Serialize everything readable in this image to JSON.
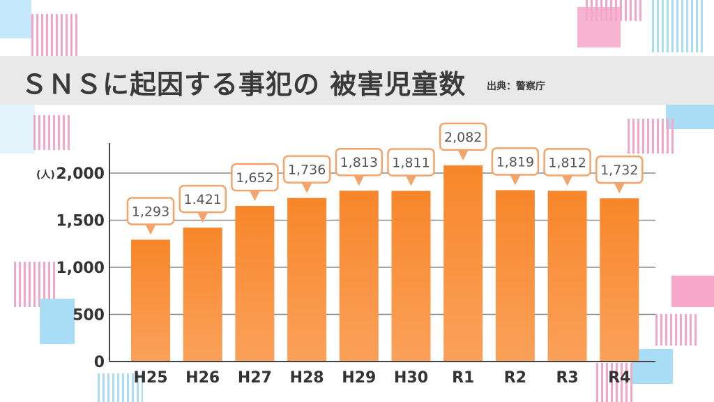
{
  "title": "ＳＮＳに起因する事犯の 被害児童数",
  "source": "出典：警察庁",
  "colors": {
    "bar": "#f8862a",
    "bar_light": "#fba15a",
    "label_border": "#f3a46a",
    "title_band": "#e9e9e9"
  },
  "chart_data": {
    "type": "bar",
    "title": "ＳＮＳに起因する事犯の 被害児童数",
    "ylabel": "(人)",
    "xlabel": "",
    "categories": [
      "H25",
      "H26",
      "H27",
      "H28",
      "H29",
      "H30",
      "R1",
      "R2",
      "R3",
      "R4"
    ],
    "values": [
      1293,
      1421,
      1652,
      1736,
      1813,
      1811,
      2082,
      1819,
      1812,
      1732
    ],
    "data_labels": [
      "1,293",
      "1.421",
      "1,652",
      "1,736",
      "1,813",
      "1,811",
      "2,082",
      "1,819",
      "1,812",
      "1,732"
    ],
    "ylim": [
      0,
      2300
    ],
    "yticks": [
      0,
      500,
      1000,
      1500,
      2000
    ],
    "ytick_labels": [
      "0",
      "500",
      "1,000",
      "1,500",
      "2,000"
    ],
    "grid": true
  }
}
